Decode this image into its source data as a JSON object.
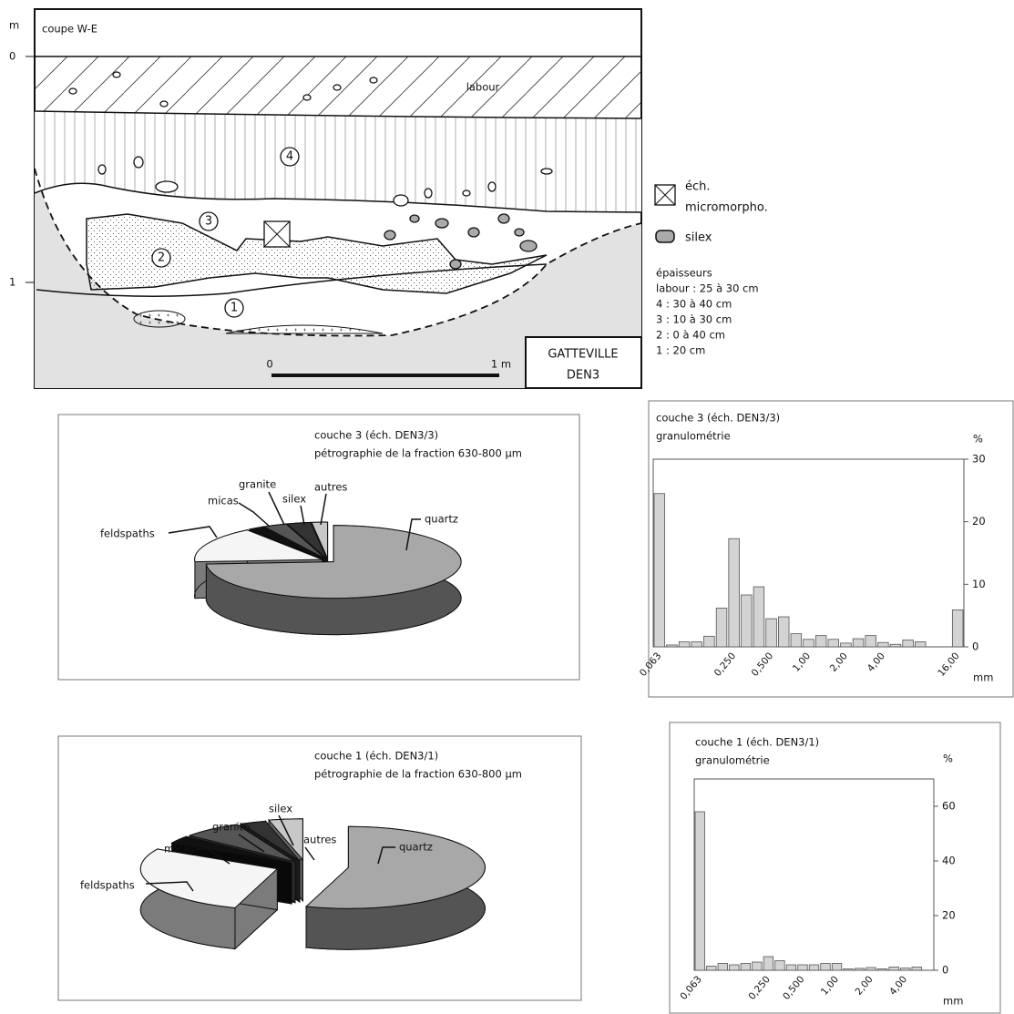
{
  "section": {
    "title": "coupe W-E",
    "depth_unit": "m",
    "depth_labels": [
      "0",
      "1"
    ],
    "layer_labels": [
      "labour",
      "4",
      "3",
      "2",
      "1"
    ],
    "scale": [
      "0",
      "1 m"
    ],
    "site": [
      "GATTEVILLE",
      "DEN3"
    ]
  },
  "legend": {
    "sample": [
      "éch.",
      "micromorpho."
    ],
    "silex": "silex",
    "thickness_title": "épaisseurs",
    "thickness": [
      "labour : 25 à 30 cm",
      "4 : 30 à 40 cm",
      "3 : 10 à 30 cm",
      "2 : 0 à 40 cm",
      "1 : 20 cm"
    ]
  },
  "chart_data": [
    {
      "type": "pie",
      "title": "couche 3 (éch. DEN3/3)",
      "subtitle": "pétrographie de la fraction 630-800 µm",
      "categories": [
        "quartz",
        "feldspaths",
        "micas",
        "granite",
        "silex",
        "autres"
      ],
      "values": [
        74,
        16,
        2,
        3,
        3,
        2
      ],
      "colors": [
        "#a8a8a8",
        "#f5f5f5",
        "#111111",
        "#555555",
        "#333333",
        "#c8c8c8"
      ]
    },
    {
      "type": "bar",
      "title": "couche 3  (éch. DEN3/3)",
      "subtitle": "granulométrie",
      "y_label": "%",
      "x_label": "mm",
      "categories": [
        "0,063",
        null,
        null,
        null,
        null,
        null,
        "0,250",
        null,
        null,
        "0,500",
        null,
        null,
        "1,00",
        null,
        null,
        "2,00",
        null,
        null,
        "4,00",
        null,
        null,
        null,
        null,
        null,
        "16,00"
      ],
      "values": [
        24.5,
        0.3,
        0.8,
        0.8,
        1.7,
        6.2,
        17.3,
        8.3,
        9.6,
        4.5,
        4.8,
        2.1,
        1.2,
        1.8,
        1.2,
        0.6,
        1.3,
        1.8,
        0.7,
        0.4,
        1.1,
        0.8,
        0,
        0,
        5.9
      ],
      "color": "#d3d3d3",
      "ylim": [
        0,
        30
      ],
      "yticks": [
        0,
        10,
        20,
        30
      ]
    },
    {
      "type": "pie",
      "title": "couche 1 (éch. DEN3/1)",
      "subtitle": "pétrographie de la fraction 630-800 µm",
      "categories": [
        "quartz",
        "feldspaths",
        "micas",
        "granite",
        "silex",
        "autres"
      ],
      "values": [
        55,
        28,
        3,
        7,
        3,
        4
      ],
      "colors": [
        "#a8a8a8",
        "#f5f5f5",
        "#111111",
        "#555555",
        "#333333",
        "#c8c8c8"
      ]
    },
    {
      "type": "bar",
      "title": "couche 1  (éch. DEN3/1)",
      "subtitle": "granulométrie",
      "y_label": "%",
      "x_label": "mm",
      "categories": [
        "0,063",
        null,
        null,
        null,
        null,
        null,
        "0,250",
        null,
        null,
        "0,500",
        null,
        null,
        "1,00",
        null,
        null,
        "2,00",
        null,
        null,
        "4,00",
        null,
        null
      ],
      "values": [
        58,
        1.5,
        2.5,
        2,
        2.5,
        3,
        5,
        3.5,
        2,
        2,
        2,
        2.5,
        2.5,
        0.5,
        0.7,
        1,
        0.5,
        1.2,
        0.8,
        1.2,
        0
      ],
      "color": "#d3d3d3",
      "ylim": [
        0,
        70
      ],
      "yticks": [
        0,
        20,
        40,
        60
      ]
    }
  ]
}
